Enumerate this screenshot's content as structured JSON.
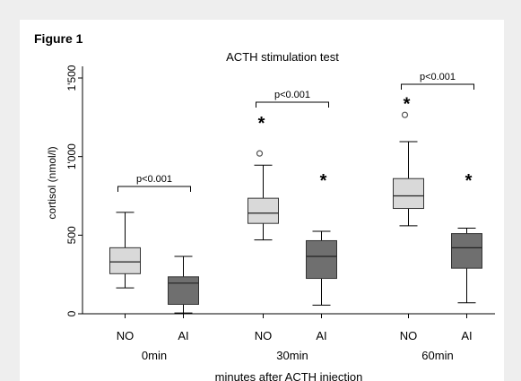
{
  "figure_label": "Figure 1",
  "chart_data": {
    "type": "box",
    "title": "ACTH stimulation test",
    "xlabel": "minutes after ACTH injection",
    "ylabel": "cortisol (nmol/l)",
    "ylim": [
      0,
      1500
    ],
    "yticks": [
      0,
      500,
      1000,
      1500
    ],
    "ytick_labels": [
      "0",
      "500",
      "1'000",
      "1'500"
    ],
    "grid": false,
    "groups": [
      {
        "label": "0min",
        "p_value": "p<0.001",
        "boxes": [
          {
            "name": "NO",
            "color": "#d9d9d9",
            "whisker_low": 165,
            "q1": 255,
            "median": 330,
            "q3": 420,
            "whisker_high": 645,
            "outliers": [],
            "extremes": []
          },
          {
            "name": "AI",
            "color": "#6f6f6f",
            "whisker_low": 5,
            "q1": 60,
            "median": 195,
            "q3": 235,
            "whisker_high": 365,
            "outliers": [],
            "extremes": []
          }
        ]
      },
      {
        "label": "30min",
        "p_value": "p<0.001",
        "boxes": [
          {
            "name": "NO",
            "color": "#d9d9d9",
            "whisker_low": 470,
            "q1": 575,
            "median": 640,
            "q3": 735,
            "whisker_high": 945,
            "outliers": [
              1020
            ],
            "extremes": [
              1225
            ]
          },
          {
            "name": "AI",
            "color": "#6f6f6f",
            "whisker_low": 55,
            "q1": 225,
            "median": 365,
            "q3": 465,
            "whisker_high": 525,
            "outliers": [],
            "extremes": [
              860
            ]
          }
        ]
      },
      {
        "label": "60min",
        "p_value": "p<0.001",
        "boxes": [
          {
            "name": "NO",
            "color": "#d9d9d9",
            "whisker_low": 560,
            "q1": 670,
            "median": 750,
            "q3": 860,
            "whisker_high": 1095,
            "outliers": [
              1265
            ],
            "extremes": [
              1350
            ]
          },
          {
            "name": "AI",
            "color": "#6f6f6f",
            "whisker_low": 70,
            "q1": 290,
            "median": 420,
            "q3": 510,
            "whisker_high": 545,
            "outliers": [],
            "extremes": [
              860
            ]
          }
        ]
      }
    ]
  }
}
